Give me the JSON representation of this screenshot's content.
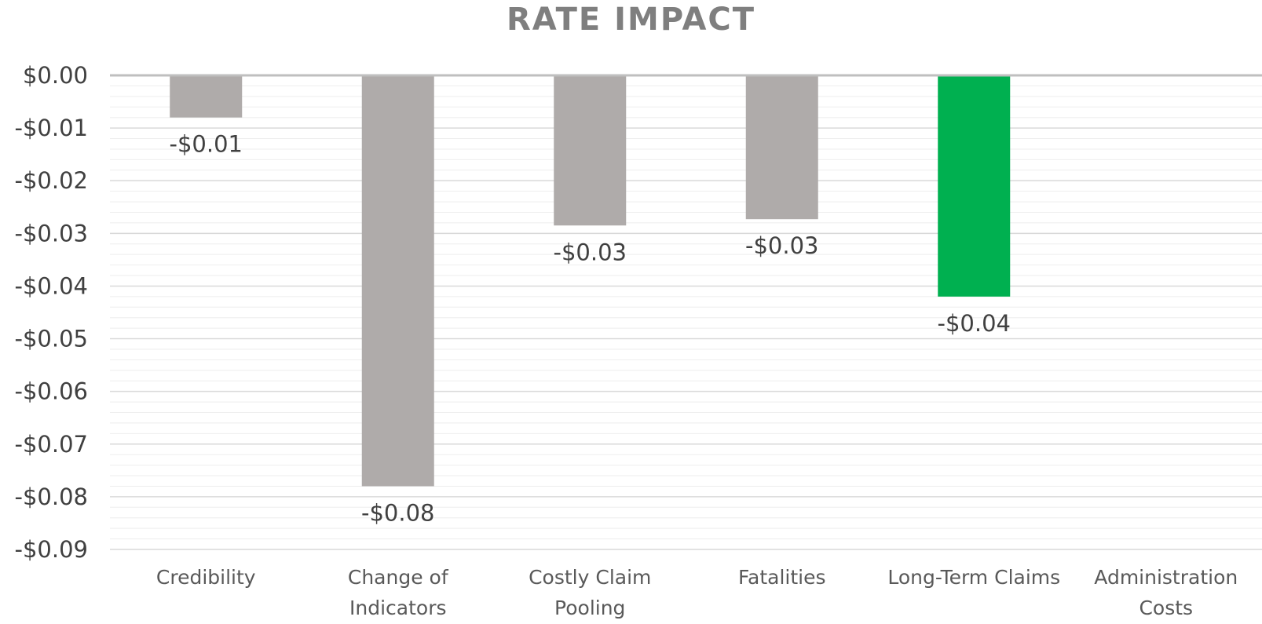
{
  "chart_data": {
    "type": "bar",
    "title": "RATE IMPACT",
    "xlabel": "",
    "ylabel": "",
    "categories": [
      [
        "Credibility"
      ],
      [
        "Change of",
        "Indicators"
      ],
      [
        "Costly Claim",
        "Pooling"
      ],
      [
        "Fatalities"
      ],
      [
        "Long-Term Claims"
      ],
      [
        "Administration",
        "Costs"
      ]
    ],
    "values": [
      -0.008,
      -0.078,
      -0.0285,
      -0.0273,
      -0.042,
      0
    ],
    "data_labels": [
      "-$0.01",
      "-$0.08",
      "-$0.03",
      "-$0.03",
      "-$0.04",
      ""
    ],
    "colors": [
      "#afabaa",
      "#afabaa",
      "#afabaa",
      "#afabaa",
      "#00b050",
      "#afabaa"
    ],
    "ylim": [
      -0.09,
      0
    ],
    "ytick_values": [
      0,
      -0.01,
      -0.02,
      -0.03,
      -0.04,
      -0.05,
      -0.06,
      -0.07,
      -0.08,
      -0.09
    ],
    "ytick_labels": [
      "$0.00",
      "-$0.01",
      "-$0.02",
      "-$0.03",
      "-$0.04",
      "-$0.05",
      "-$0.06",
      "-$0.07",
      "-$0.08",
      "-$0.09"
    ],
    "grid": true,
    "legend": "none",
    "title_color": "#7f7f7f",
    "text_color": "#404040",
    "gridline_color": "#d9d9d9",
    "zero_line_color": "#bfbfbf"
  }
}
